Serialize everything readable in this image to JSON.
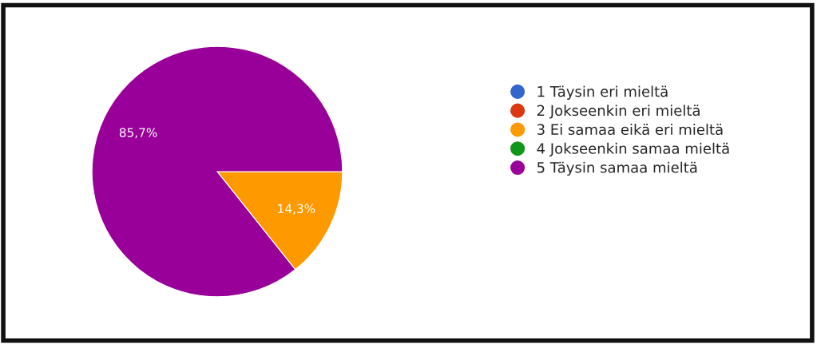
{
  "chart_data": {
    "type": "pie",
    "categories": [
      "1 Täysin eri mieltä",
      "2 Jokseenkin eri mieltä",
      "3 Ei samaa eikä eri mieltä",
      "4 Jokseenkin samaa mieltä",
      "5 Täysin samaa mieltä"
    ],
    "values": [
      0,
      0,
      14.3,
      0,
      85.7
    ],
    "colors": [
      "#3366cc",
      "#dc3912",
      "#ff9900",
      "#109618",
      "#990099"
    ],
    "value_labels": [
      null,
      null,
      "14,3%",
      null,
      "85,7%"
    ],
    "legend": "right"
  }
}
